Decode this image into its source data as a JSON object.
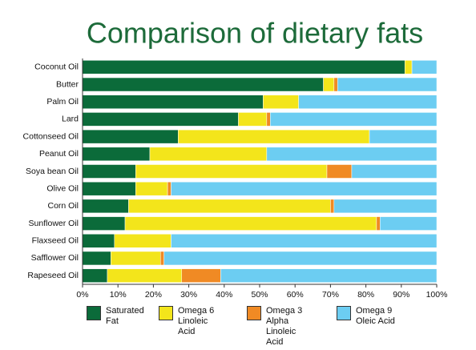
{
  "chart_data": {
    "type": "stacked-barh",
    "title": "Comparison of dietary fats",
    "categories": [
      "Coconut Oil",
      "Butter",
      "Palm Oil",
      "Lard",
      "Cottonseed Oil",
      "Peanut Oil",
      "Soya bean Oil",
      "Olive Oil",
      "Corn Oil",
      "Sunflower Oil",
      "Flaxseed Oil",
      "Safflower Oil",
      "Rapeseed Oil"
    ],
    "series": [
      {
        "name": "Saturated Fat",
        "color": "#0b6b3a",
        "values": [
          91,
          68,
          51,
          44,
          27,
          19,
          15,
          15,
          13,
          12,
          9,
          8,
          7
        ]
      },
      {
        "name": "Omega 6 Linoleic Acid",
        "color": "#f3e51b",
        "values": [
          2,
          3,
          10,
          8,
          54,
          33,
          54,
          9,
          57,
          71,
          16,
          14,
          21
        ]
      },
      {
        "name": "Omega 3 Alpha Linoleic Acid",
        "color": "#f08a24",
        "values": [
          0,
          1,
          0,
          1,
          0,
          0,
          7,
          1,
          1,
          1,
          0,
          1,
          11
        ]
      },
      {
        "name": "Omega 9 Oleic Acid",
        "color": "#6ccdf2",
        "values": [
          7,
          28,
          39,
          47,
          19,
          48,
          24,
          75,
          29,
          16,
          75,
          77,
          61
        ]
      }
    ],
    "xlim": [
      0,
      100
    ],
    "xticks": [
      {
        "value": 0,
        "label": "0%"
      },
      {
        "value": 10,
        "label": "10%"
      },
      {
        "value": 20,
        "label": "20%"
      },
      {
        "value": 30,
        "label": "30%"
      },
      {
        "value": 40,
        "label": "40%"
      },
      {
        "value": 50,
        "label": "50%"
      },
      {
        "value": 60,
        "label": "60%"
      },
      {
        "value": 70,
        "label": "70%"
      },
      {
        "value": 80,
        "label": "80%"
      },
      {
        "value": 90,
        "label": "90%"
      },
      {
        "value": 100,
        "label": "100%"
      }
    ]
  }
}
